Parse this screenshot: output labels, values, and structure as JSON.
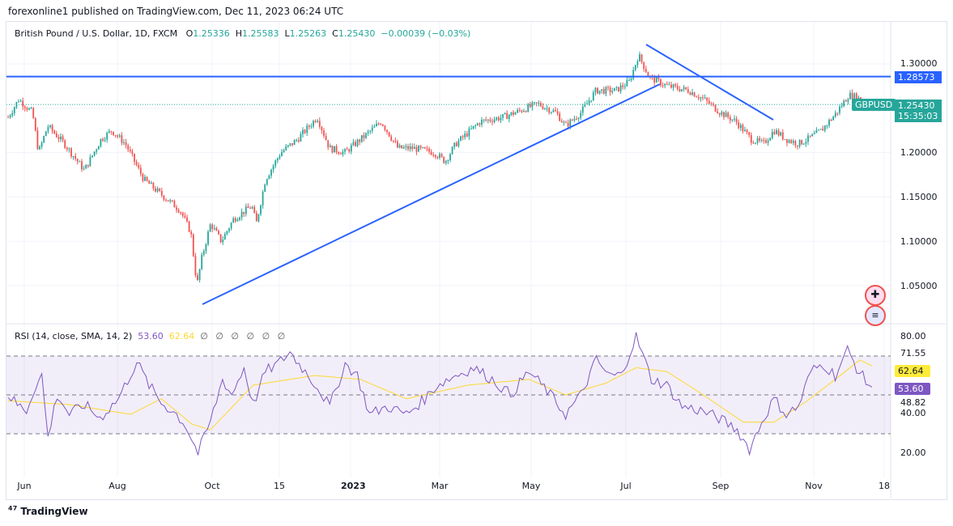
{
  "header": {
    "published": "forexonline1 published on TradingView.com, Dec 11, 2023 06:24 UTC"
  },
  "legend": {
    "symbol": "British Pound / U.S. Dollar, 1D, FXCM",
    "o_label": "O",
    "o": "1.25336",
    "h_label": "H",
    "h": "1.25583",
    "l_label": "L",
    "l": "1.25263",
    "c_label": "C",
    "c": "1.25430",
    "change": "−0.00039 (−0.03%)"
  },
  "rsi_legend": {
    "title": "RSI (14, close, SMA, 14, 2)",
    "rsi": "53.60",
    "sma": "62.64",
    "empty": "∅ ∅ ∅ ∅ ∅ ∅"
  },
  "price_axis": {
    "ticks": [
      "1.30000",
      "1.20000",
      "1.15000",
      "1.10000",
      "1.05000"
    ],
    "hline_label": "1.28573",
    "last_price": "1.25430",
    "countdown": "15:35:03",
    "symbol_tag": "GBPUSD"
  },
  "rsi_axis": {
    "ticks": [
      "80.00",
      "71.55",
      "48.82",
      "40.00",
      "20.00"
    ],
    "rsi_label": "53.60",
    "sma_label": "62.64"
  },
  "time_axis": [
    "Jun",
    "Aug",
    "Oct",
    "15",
    "2023",
    "Mar",
    "May",
    "Jul",
    "Sep",
    "Nov",
    "18"
  ],
  "footer": {
    "brand": "TradingView"
  },
  "colors": {
    "up": "#26a69a",
    "down": "#ef5350",
    "trendline": "#2962ff",
    "rsi": "#7e57c2",
    "rsi_sma": "#fdd835"
  },
  "chart_data": {
    "type": "candlestick",
    "symbol": "GBPUSD",
    "interval": "1D",
    "ylim": [
      1.02,
      1.32
    ],
    "close_path": [
      [
        "2022-05-25",
        1.24
      ],
      [
        "2022-06-01",
        1.26
      ],
      [
        "2022-06-10",
        1.245
      ],
      [
        "2022-06-14",
        1.2
      ],
      [
        "2022-06-20",
        1.23
      ],
      [
        "2022-07-01",
        1.21
      ],
      [
        "2022-07-14",
        1.18
      ],
      [
        "2022-07-25",
        1.215
      ],
      [
        "2022-08-01",
        1.225
      ],
      [
        "2022-08-10",
        1.21
      ],
      [
        "2022-08-22",
        1.17
      ],
      [
        "2022-09-01",
        1.155
      ],
      [
        "2022-09-15",
        1.135
      ],
      [
        "2022-09-22",
        1.11
      ],
      [
        "2022-09-26",
        1.05
      ],
      [
        "2022-09-29",
        1.08
      ],
      [
        "2022-10-05",
        1.12
      ],
      [
        "2022-10-12",
        1.1
      ],
      [
        "2022-10-20",
        1.125
      ],
      [
        "2022-11-01",
        1.14
      ],
      [
        "2022-11-04",
        1.12
      ],
      [
        "2022-11-10",
        1.17
      ],
      [
        "2022-11-20",
        1.2
      ],
      [
        "2022-12-01",
        1.215
      ],
      [
        "2022-12-14",
        1.24
      ],
      [
        "2022-12-22",
        1.205
      ],
      [
        "2023-01-01",
        1.2
      ],
      [
        "2023-01-15",
        1.22
      ],
      [
        "2023-01-25",
        1.235
      ],
      [
        "2023-02-05",
        1.205
      ],
      [
        "2023-02-15",
        1.205
      ],
      [
        "2023-03-01",
        1.2
      ],
      [
        "2023-03-08",
        1.19
      ],
      [
        "2023-03-15",
        1.21
      ],
      [
        "2023-03-31",
        1.235
      ],
      [
        "2023-04-15",
        1.24
      ],
      [
        "2023-05-08",
        1.255
      ],
      [
        "2023-05-20",
        1.245
      ],
      [
        "2023-05-26",
        1.23
      ],
      [
        "2023-06-05",
        1.245
      ],
      [
        "2023-06-15",
        1.27
      ],
      [
        "2023-06-28",
        1.27
      ],
      [
        "2023-07-07",
        1.28
      ],
      [
        "2023-07-13",
        1.31
      ],
      [
        "2023-07-20",
        1.285
      ],
      [
        "2023-08-01",
        1.275
      ],
      [
        "2023-08-15",
        1.27
      ],
      [
        "2023-08-25",
        1.26
      ],
      [
        "2023-09-05",
        1.245
      ],
      [
        "2023-09-15",
        1.235
      ],
      [
        "2023-09-25",
        1.215
      ],
      [
        "2023-10-03",
        1.21
      ],
      [
        "2023-10-10",
        1.225
      ],
      [
        "2023-10-18",
        1.215
      ],
      [
        "2023-10-26",
        1.21
      ],
      [
        "2023-11-01",
        1.215
      ],
      [
        "2023-11-10",
        1.225
      ],
      [
        "2023-11-20",
        1.245
      ],
      [
        "2023-11-28",
        1.265
      ],
      [
        "2023-12-04",
        1.262
      ],
      [
        "2023-12-08",
        1.2543
      ]
    ],
    "hline": 1.28573,
    "rsi_path": [
      [
        0,
        50
      ],
      [
        3,
        45
      ],
      [
        6,
        42
      ],
      [
        9,
        55
      ],
      [
        11,
        60
      ],
      [
        13,
        28
      ],
      [
        16,
        50
      ],
      [
        20,
        40
      ],
      [
        25,
        45
      ],
      [
        30,
        38
      ],
      [
        36,
        48
      ],
      [
        42,
        67
      ],
      [
        46,
        55
      ],
      [
        50,
        46
      ],
      [
        55,
        40
      ],
      [
        58,
        34
      ],
      [
        62,
        20
      ],
      [
        66,
        36
      ],
      [
        70,
        58
      ],
      [
        73,
        50
      ],
      [
        77,
        64
      ],
      [
        80,
        45
      ],
      [
        84,
        62
      ],
      [
        88,
        66
      ],
      [
        92,
        72
      ],
      [
        97,
        62
      ],
      [
        101,
        54
      ],
      [
        105,
        44
      ],
      [
        110,
        66
      ],
      [
        114,
        60
      ],
      [
        118,
        40
      ],
      [
        124,
        44
      ],
      [
        130,
        40
      ],
      [
        136,
        48
      ],
      [
        140,
        55
      ],
      [
        146,
        60
      ],
      [
        152,
        64
      ],
      [
        158,
        58
      ],
      [
        164,
        50
      ],
      [
        170,
        62
      ],
      [
        176,
        52
      ],
      [
        182,
        40
      ],
      [
        187,
        50
      ],
      [
        192,
        68
      ],
      [
        196,
        60
      ],
      [
        200,
        60
      ],
      [
        205,
        80
      ],
      [
        210,
        58
      ],
      [
        215,
        55
      ],
      [
        220,
        44
      ],
      [
        226,
        42
      ],
      [
        232,
        38
      ],
      [
        238,
        32
      ],
      [
        242,
        22
      ],
      [
        246,
        36
      ],
      [
        250,
        48
      ],
      [
        254,
        40
      ],
      [
        258,
        44
      ],
      [
        262,
        62
      ],
      [
        266,
        66
      ],
      [
        270,
        60
      ],
      [
        274,
        73
      ],
      [
        277,
        64
      ],
      [
        280,
        57
      ],
      [
        282,
        54
      ]
    ],
    "rsi_sma_path": [
      [
        0,
        47
      ],
      [
        20,
        45
      ],
      [
        40,
        40
      ],
      [
        50,
        48
      ],
      [
        60,
        35
      ],
      [
        66,
        32
      ],
      [
        80,
        55
      ],
      [
        100,
        60
      ],
      [
        115,
        58
      ],
      [
        130,
        48
      ],
      [
        150,
        55
      ],
      [
        170,
        58
      ],
      [
        182,
        50
      ],
      [
        195,
        56
      ],
      [
        205,
        64
      ],
      [
        215,
        62
      ],
      [
        225,
        52
      ],
      [
        240,
        36
      ],
      [
        250,
        36
      ],
      [
        260,
        46
      ],
      [
        270,
        58
      ],
      [
        278,
        68
      ],
      [
        282,
        65
      ]
    ],
    "rsi_bands": [
      30,
      50,
      70
    ],
    "rsi_ylim": [
      15,
      85
    ]
  }
}
